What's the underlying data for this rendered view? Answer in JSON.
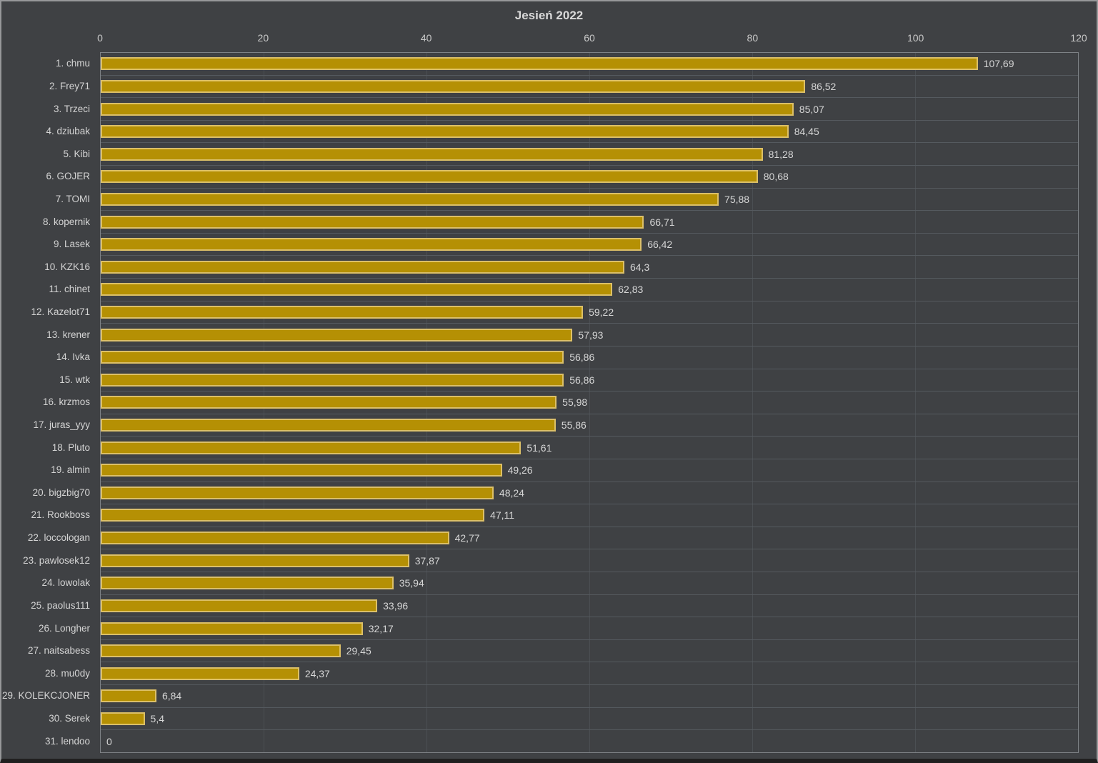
{
  "chart_data": {
    "type": "bar",
    "orientation": "horizontal",
    "title": "Jesień 2022",
    "categories": [
      "1. chmu",
      "2. Frey71",
      "3. Trzeci",
      "4. dziubak",
      "5. Kibi",
      "6. GOJER",
      "7. TOMI",
      "8. kopernik",
      "9. Lasek",
      "10. KZK16",
      "11. chinet",
      "12. Kazelot71",
      "13. krener",
      "14. Ivka",
      "15. wtk",
      "16. krzmos",
      "17. juras_yyy",
      "18. Pluto",
      "19. almin",
      "20. bigzbig70",
      "21. Rookboss",
      "22. loccologan",
      "23. pawlosek12",
      "24. lowolak",
      "25. paolus111",
      "26. Longher",
      "27. naitsabess",
      "28. mu0dy",
      "29. KOLEKCJONER",
      "30. Serek",
      "31. lendoo"
    ],
    "values": [
      107.69,
      86.52,
      85.07,
      84.45,
      81.28,
      80.68,
      75.88,
      66.71,
      66.42,
      64.3,
      62.83,
      59.22,
      57.93,
      56.86,
      56.86,
      55.98,
      55.86,
      51.61,
      49.26,
      48.24,
      47.11,
      42.77,
      37.87,
      35.94,
      33.96,
      32.17,
      29.45,
      24.37,
      6.84,
      5.4,
      0
    ],
    "value_labels": [
      "107,69",
      "86,52",
      "85,07",
      "84,45",
      "81,28",
      "80,68",
      "75,88",
      "66,71",
      "66,42",
      "64,3",
      "62,83",
      "59,22",
      "57,93",
      "56,86",
      "56,86",
      "55,98",
      "55,86",
      "51,61",
      "49,26",
      "48,24",
      "47,11",
      "42,77",
      "37,87",
      "35,94",
      "33,96",
      "32,17",
      "29,45",
      "24,37",
      "6,84",
      "5,4",
      "0"
    ],
    "xlim": [
      0,
      120
    ],
    "x_ticks": [
      "0",
      "20",
      "40",
      "60",
      "80",
      "100",
      "120"
    ],
    "grid": true,
    "legend": "none",
    "colors": {
      "background": "#3f4144",
      "bar_fill": "#b59004",
      "bar_border": "#dcc068",
      "grid_vertical": "#4b4f53",
      "grid_horizontal": "#555a5f",
      "plot_border": "#7e8286",
      "title_text": "#d9d9d9",
      "tick_text": "#c9c9c9",
      "category_text": "#d4d4d4",
      "value_text": "#d6d6d6"
    }
  }
}
